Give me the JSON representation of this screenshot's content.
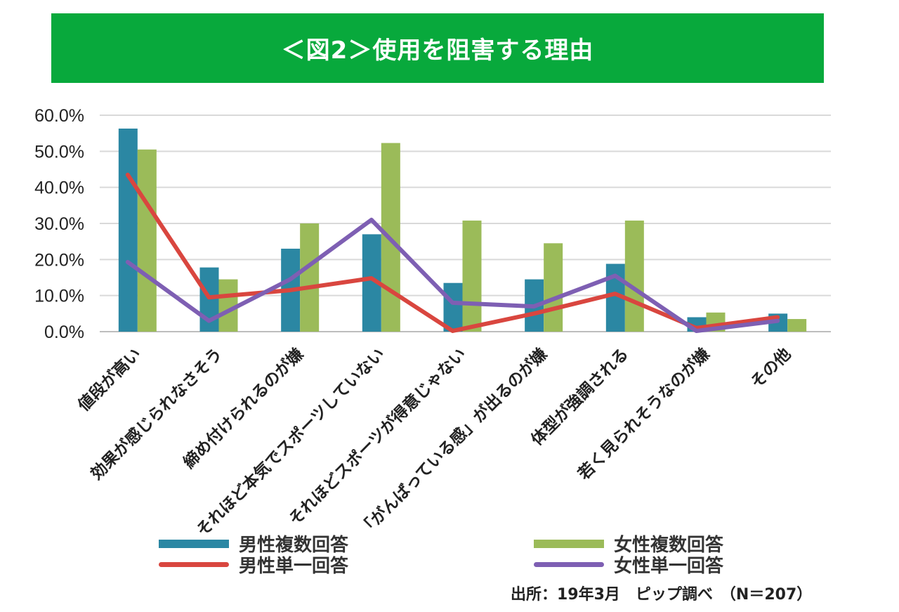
{
  "banner": {
    "title": "＜図2＞使用を阻害する理由"
  },
  "chart_data": {
    "type": "bar+line",
    "title": "＜図2＞使用を阻害する理由",
    "categories": [
      "値段が高い",
      "効果が感じられなさそう",
      "締め付けられるのが嫌",
      "それほど本気でスポーツしていない",
      "それほどスポーツが得意じゃない",
      "「がんばっている感」が出るのが嫌",
      "体型が強調される",
      "若く見られそうなのが嫌",
      "その他"
    ],
    "yticks": [
      "0.0%",
      "10.0%",
      "20.0%",
      "30.0%",
      "40.0%",
      "50.0%",
      "60.0%"
    ],
    "ylim": [
      0,
      60
    ],
    "grid": true,
    "series": [
      {
        "name": "男性複数回答",
        "kind": "bar",
        "color": "#2b87a3",
        "values": [
          56.3,
          17.8,
          23.0,
          27.0,
          13.5,
          14.5,
          18.8,
          4.0,
          5.0
        ]
      },
      {
        "name": "女性複数回答",
        "kind": "bar",
        "color": "#9bbb59",
        "values": [
          50.5,
          14.5,
          30.0,
          52.3,
          30.8,
          24.5,
          30.8,
          5.3,
          3.5
        ]
      },
      {
        "name": "男性単一回答",
        "kind": "line",
        "color": "#d9463f",
        "values": [
          43.5,
          9.5,
          11.5,
          14.8,
          0.2,
          5.0,
          10.5,
          1.0,
          4.0
        ]
      },
      {
        "name": "女性単一回答",
        "kind": "line",
        "color": "#7e5fb3",
        "values": [
          19.3,
          3.0,
          14.5,
          31.0,
          8.0,
          7.0,
          15.5,
          0.2,
          3.0
        ]
      }
    ]
  },
  "legend": {
    "male_multi": "男性複数回答",
    "female_multi": "女性複数回答",
    "male_single": "男性単一回答",
    "female_single": "女性単一回答"
  },
  "source": "出所：19年3月　ピップ調べ　（N＝207）"
}
